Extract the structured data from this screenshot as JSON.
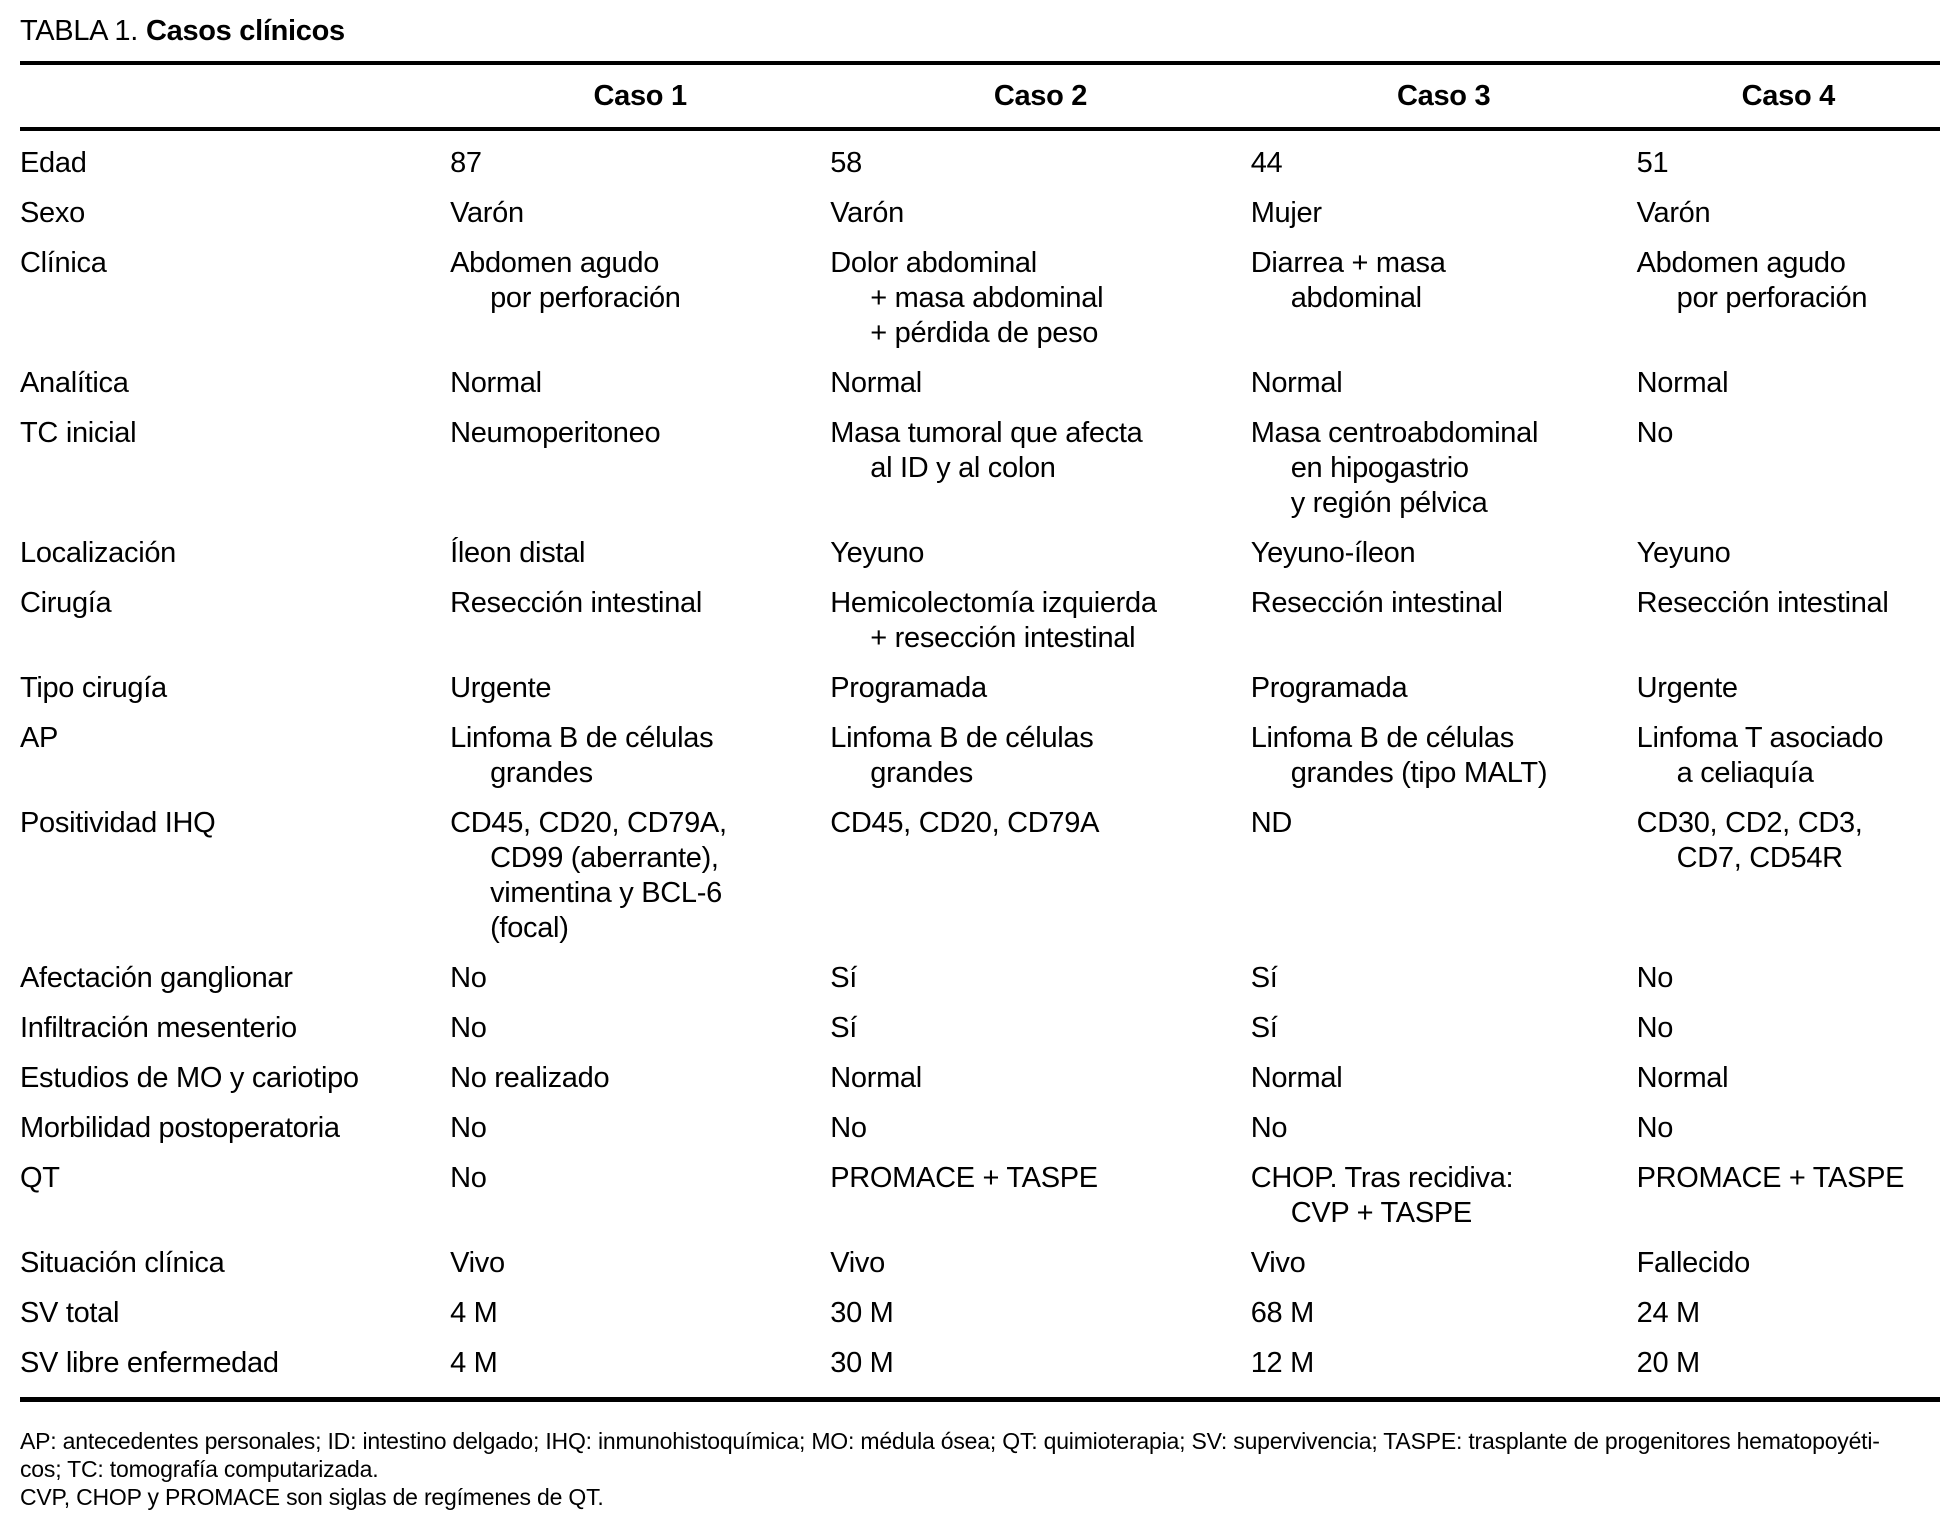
{
  "style": {
    "text_color": "#000000",
    "background_color": "#ffffff",
    "rule_color": "#000000"
  },
  "title": {
    "prefix": "TABLA 1.",
    "caption": "Casos clínicos"
  },
  "table": {
    "columns": [
      "Caso 1",
      "Caso 2",
      "Caso 3",
      "Caso 4"
    ],
    "rows": [
      {
        "label": "Edad",
        "cells": [
          [
            "87"
          ],
          [
            "58"
          ],
          [
            "44"
          ],
          [
            "51"
          ]
        ]
      },
      {
        "label": "Sexo",
        "cells": [
          [
            "Varón"
          ],
          [
            "Varón"
          ],
          [
            "Mujer"
          ],
          [
            "Varón"
          ]
        ]
      },
      {
        "label": "Clínica",
        "cells": [
          [
            "Abdomen agudo",
            "por perforación"
          ],
          [
            "Dolor abdominal",
            "+ masa abdominal",
            "+ pérdida de peso"
          ],
          [
            "Diarrea + masa",
            "abdominal"
          ],
          [
            "Abdomen agudo",
            "por perforación"
          ]
        ]
      },
      {
        "label": "Analítica",
        "cells": [
          [
            "Normal"
          ],
          [
            "Normal"
          ],
          [
            "Normal"
          ],
          [
            "Normal"
          ]
        ]
      },
      {
        "label": "TC inicial",
        "cells": [
          [
            "Neumoperitoneo"
          ],
          [
            "Masa tumoral que afecta",
            "al ID y al colon"
          ],
          [
            "Masa centroabdominal",
            "en hipogastrio",
            "y región pélvica"
          ],
          [
            "No"
          ]
        ]
      },
      {
        "label": "Localización",
        "cells": [
          [
            "Íleon distal"
          ],
          [
            "Yeyuno"
          ],
          [
            "Yeyuno-íleon"
          ],
          [
            "Yeyuno"
          ]
        ]
      },
      {
        "label": "Cirugía",
        "cells": [
          [
            "Resección intestinal"
          ],
          [
            "Hemicolectomía izquierda",
            "+ resección intestinal"
          ],
          [
            "Resección intestinal"
          ],
          [
            "Resección intestinal"
          ]
        ]
      },
      {
        "label": "Tipo cirugía",
        "cells": [
          [
            "Urgente"
          ],
          [
            "Programada"
          ],
          [
            "Programada"
          ],
          [
            "Urgente"
          ]
        ]
      },
      {
        "label": "AP",
        "cells": [
          [
            "Linfoma B de células",
            "grandes"
          ],
          [
            "Linfoma B de células",
            "grandes"
          ],
          [
            "Linfoma B de células",
            "grandes (tipo MALT)"
          ],
          [
            "Linfoma T asociado",
            "a celiaquía"
          ]
        ]
      },
      {
        "label": "Positividad IHQ",
        "cells": [
          [
            "CD45, CD20, CD79A,",
            "CD99 (aberrante),",
            "vimentina y BCL-6",
            "(focal)"
          ],
          [
            "CD45, CD20, CD79A"
          ],
          [
            "ND"
          ],
          [
            "CD30, CD2, CD3,",
            "CD7, CD54R"
          ]
        ]
      },
      {
        "label": "Afectación ganglionar",
        "cells": [
          [
            "No"
          ],
          [
            "Sí"
          ],
          [
            "Sí"
          ],
          [
            "No"
          ]
        ]
      },
      {
        "label": "Infiltración mesenterio",
        "cells": [
          [
            "No"
          ],
          [
            "Sí"
          ],
          [
            "Sí"
          ],
          [
            "No"
          ]
        ]
      },
      {
        "label": "Estudios de MO y cariotipo",
        "cells": [
          [
            "No realizado"
          ],
          [
            "Normal"
          ],
          [
            "Normal"
          ],
          [
            "Normal"
          ]
        ]
      },
      {
        "label": "Morbilidad postoperatoria",
        "cells": [
          [
            "No"
          ],
          [
            "No"
          ],
          [
            "No"
          ],
          [
            "No"
          ]
        ]
      },
      {
        "label": "QT",
        "cells": [
          [
            "No"
          ],
          [
            "PROMACE + TASPE"
          ],
          [
            "CHOP. Tras recidiva:",
            "CVP + TASPE"
          ],
          [
            "PROMACE + TASPE"
          ]
        ]
      },
      {
        "label": "Situación clínica",
        "cells": [
          [
            "Vivo"
          ],
          [
            "Vivo"
          ],
          [
            "Vivo"
          ],
          [
            "Fallecido"
          ]
        ]
      },
      {
        "label": "SV total",
        "cells": [
          [
            "4 M"
          ],
          [
            "30 M"
          ],
          [
            "68 M"
          ],
          [
            "24 M"
          ]
        ]
      },
      {
        "label": "SV libre enfermedad",
        "cells": [
          [
            "4 M"
          ],
          [
            "30 M"
          ],
          [
            "12 M"
          ],
          [
            "20 M"
          ]
        ]
      }
    ]
  },
  "footnotes": [
    "AP: antecedentes personales; ID: intestino delgado; IHQ: inmunohistoquímica; MO: médula ósea; QT: quimioterapia; SV: supervivencia; TASPE: trasplante de progenitores hematopoyéti-",
    "cos; TC: tomografía computarizada.",
    "CVP, CHOP y PROMACE son siglas de regímenes de QT."
  ]
}
